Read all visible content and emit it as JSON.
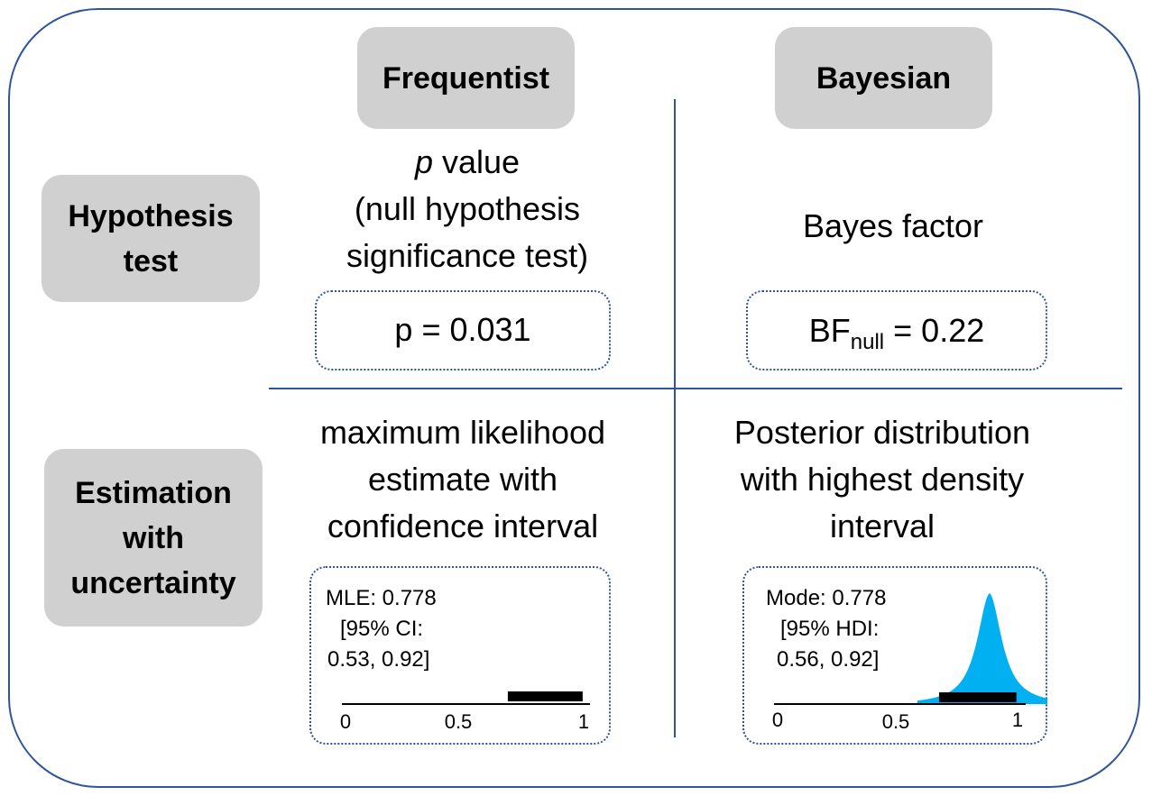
{
  "headers": {
    "frequentist": "Frequentist",
    "bayesian": "Bayesian"
  },
  "rows": {
    "hypothesis": {
      "line1": "Hypothesis",
      "line2": "test"
    },
    "estimation": {
      "line1": "Estimation",
      "line2": "with",
      "line3": "uncertainty"
    }
  },
  "hypothesis_test": {
    "frequentist": {
      "p_italic": "p",
      "line1_rest": " value",
      "line2": "(null hypothesis",
      "line3": "significance test)",
      "result": "p = 0.031"
    },
    "bayesian": {
      "description": "Bayes factor",
      "result_prefix": "BF",
      "result_sub": "null",
      "result_suffix": " = 0.22"
    }
  },
  "estimation": {
    "frequentist": {
      "line1": "maximum likelihood",
      "line2": "estimate with",
      "line3": "confidence interval",
      "box_line1": "MLE: 0.778",
      "box_line2": "[95% CI:",
      "box_line3": "0.53, 0.92]",
      "axis_ticks": [
        "0",
        "0.5",
        "1"
      ],
      "interval": [
        0.53,
        0.92
      ]
    },
    "bayesian": {
      "line1": "Posterior distribution",
      "line2": "with highest density",
      "line3": "interval",
      "box_line1": "Mode: 0.778",
      "box_line2": "[95% HDI:",
      "box_line3": "0.56, 0.92]",
      "axis_ticks": [
        "0",
        "0.5",
        "1"
      ],
      "interval": [
        0.56,
        0.92
      ],
      "mode": 0.778,
      "curve_color": "#00b0f0"
    }
  },
  "colors": {
    "border": "#2f5597",
    "pill": "#d0d0d0",
    "interval_bar": "#000000"
  }
}
